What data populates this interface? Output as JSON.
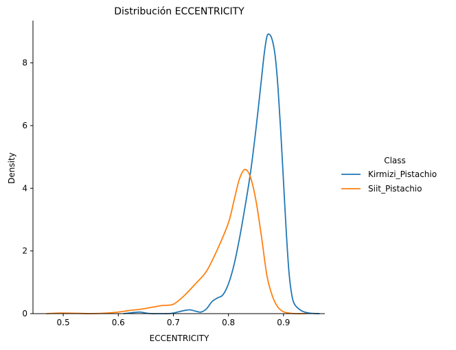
{
  "chart_data": {
    "type": "line",
    "title": "Distribución ECCENTRICITY",
    "xlabel": "ECCENTRICITY",
    "ylabel": "Density",
    "xlim": [
      0.445,
      0.975
    ],
    "ylim": [
      0,
      9.35
    ],
    "xticks": [
      0.5,
      0.6,
      0.7,
      0.8,
      0.9
    ],
    "xtick_labels": [
      "0.5",
      "0.6",
      "0.7",
      "0.8",
      "0.9"
    ],
    "yticks": [
      0,
      2,
      4,
      6,
      8
    ],
    "ytick_labels": [
      "0",
      "2",
      "4",
      "6",
      "8"
    ],
    "grid": false,
    "legend": {
      "title": "Class",
      "position": "right-outside"
    },
    "series": [
      {
        "name": "Kirmizi_Pistachio",
        "color": "#1f77b4",
        "x": [
          0.61,
          0.62,
          0.63,
          0.64,
          0.65,
          0.66,
          0.67,
          0.68,
          0.69,
          0.7,
          0.71,
          0.72,
          0.73,
          0.74,
          0.75,
          0.76,
          0.77,
          0.78,
          0.79,
          0.8,
          0.81,
          0.82,
          0.83,
          0.84,
          0.85,
          0.86,
          0.865,
          0.87,
          0.875,
          0.88,
          0.885,
          0.89,
          0.895,
          0.9,
          0.905,
          0.91,
          0.915,
          0.92,
          0.93,
          0.94,
          0.95,
          0.965
        ],
        "values": [
          0.0,
          0.02,
          0.04,
          0.05,
          0.02,
          0.0,
          0.0,
          0.0,
          0.0,
          0.02,
          0.06,
          0.1,
          0.12,
          0.08,
          0.05,
          0.15,
          0.38,
          0.5,
          0.6,
          0.95,
          1.55,
          2.4,
          3.4,
          4.5,
          5.9,
          7.5,
          8.3,
          8.85,
          8.9,
          8.7,
          8.2,
          7.2,
          5.8,
          4.2,
          2.6,
          1.3,
          0.6,
          0.3,
          0.12,
          0.04,
          0.01,
          0.0
        ]
      },
      {
        "name": "Siit_Pistachio",
        "color": "#ff7f0e",
        "x": [
          0.47,
          0.5,
          0.55,
          0.58,
          0.6,
          0.62,
          0.64,
          0.66,
          0.68,
          0.7,
          0.72,
          0.74,
          0.76,
          0.78,
          0.8,
          0.81,
          0.82,
          0.83,
          0.84,
          0.85,
          0.86,
          0.87,
          0.88,
          0.89,
          0.9,
          0.91,
          0.92,
          0.94
        ],
        "values": [
          0.0,
          0.02,
          0.0,
          0.02,
          0.05,
          0.1,
          0.14,
          0.2,
          0.26,
          0.3,
          0.58,
          0.95,
          1.35,
          2.05,
          2.9,
          3.6,
          4.3,
          4.6,
          4.35,
          3.6,
          2.45,
          1.2,
          0.55,
          0.2,
          0.06,
          0.02,
          0.0,
          0.0
        ]
      }
    ]
  }
}
